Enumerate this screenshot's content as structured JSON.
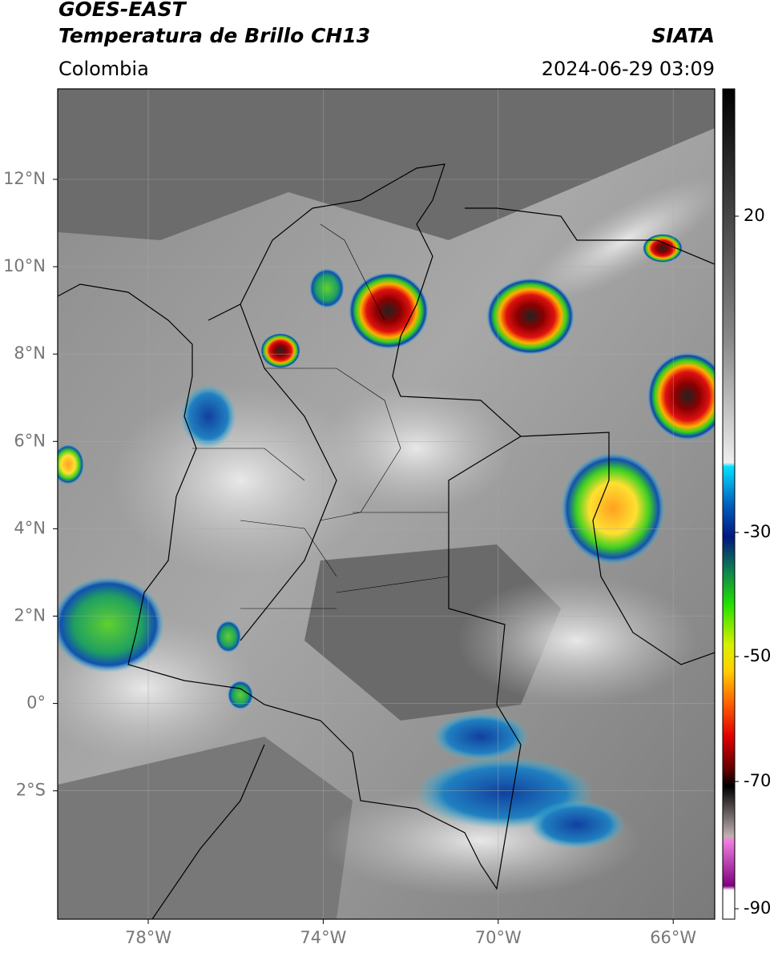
{
  "header": {
    "title": "GOES-EAST",
    "subtitle": "Temperatura de Brillo CH13",
    "agency": "SIATA",
    "region": "Colombia",
    "datetime": "2024-06-29 03:09"
  },
  "map": {
    "lat_labels": [
      "12°N",
      "10°N",
      "8°N",
      "6°N",
      "4°N",
      "2°N",
      "0°",
      "2°S"
    ],
    "lon_labels": [
      "78°W",
      "74°W",
      "70°W",
      "66°W"
    ]
  },
  "colorbar": {
    "tick_labels": [
      "20",
      "-30",
      "-50",
      "-70",
      "-90"
    ]
  }
}
